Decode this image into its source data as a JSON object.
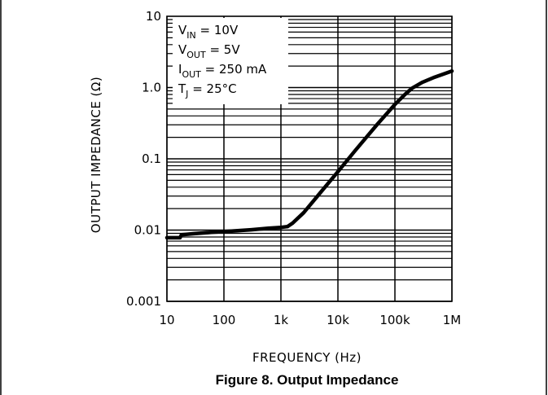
{
  "caption": "Figure 8. Output Impedance",
  "chart_data": {
    "type": "line",
    "title": "",
    "xlabel": "FREQUENCY (Hz)",
    "ylabel": "OUTPUT IMPEDANCE (Ω)",
    "xscale": "log",
    "yscale": "log",
    "xlim": [
      10,
      1000000
    ],
    "ylim": [
      0.001,
      10
    ],
    "grid": true,
    "x_tick_labels": [
      "10",
      "100",
      "1k",
      "10k",
      "100k",
      "1M"
    ],
    "y_tick_labels": [
      "0.001",
      "0.01",
      "0.1",
      "1.0",
      "10"
    ],
    "conditions": [
      {
        "main": "V",
        "sub": "IN",
        "rest": " = 10V"
      },
      {
        "main": "V",
        "sub": "OUT",
        "rest": " = 5V"
      },
      {
        "main": "I",
        "sub": "OUT",
        "rest": " = 250 mA"
      },
      {
        "main": "T",
        "sub": "J",
        "rest": " = 25°C"
      }
    ],
    "series": [
      {
        "x": [
          10,
          17,
          18,
          30,
          60,
          100,
          300,
          600,
          1000,
          1300,
          1600,
          2500,
          5000,
          10000,
          20000,
          50000,
          100000,
          150000,
          200000,
          300000,
          500000,
          1000000
        ],
        "y": [
          0.0078,
          0.0078,
          0.0086,
          0.0089,
          0.0093,
          0.0095,
          0.0101,
          0.0106,
          0.0109,
          0.0112,
          0.0125,
          0.0175,
          0.034,
          0.066,
          0.13,
          0.31,
          0.58,
          0.8,
          0.98,
          1.18,
          1.4,
          1.7
        ]
      }
    ]
  }
}
